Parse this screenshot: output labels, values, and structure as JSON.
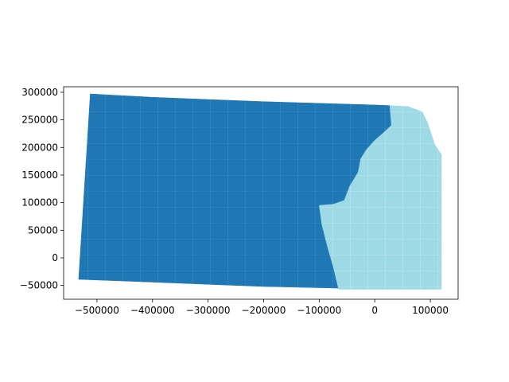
{
  "chart_data": {
    "type": "map",
    "title": "",
    "xlabel": "",
    "ylabel": "",
    "xlim": [
      -560000,
      150000
    ],
    "ylim": [
      -75000,
      310000
    ],
    "x_ticks": [
      -500000,
      -400000,
      -300000,
      -200000,
      -100000,
      0,
      100000
    ],
    "x_tick_labels": [
      "−500000",
      "−400000",
      "−300000",
      "−200000",
      "−100000",
      "0",
      "100000"
    ],
    "y_ticks": [
      -50000,
      0,
      50000,
      100000,
      150000,
      200000,
      250000,
      300000
    ],
    "y_tick_labels": [
      "−50000",
      "0",
      "50000",
      "100000",
      "150000",
      "200000",
      "250000",
      "300000"
    ],
    "grid": false,
    "regions": [
      {
        "color": "#1f77b4",
        "polygon": [
          [
            -512000,
            297000
          ],
          [
            -400000,
            291000
          ],
          [
            -300000,
            287000
          ],
          [
            -200000,
            283000
          ],
          [
            -100000,
            280000
          ],
          [
            0,
            277000
          ],
          [
            27000,
            276000
          ],
          [
            30000,
            240000
          ],
          [
            15000,
            226000
          ],
          [
            0,
            213000
          ],
          [
            -15000,
            196000
          ],
          [
            -25000,
            180000
          ],
          [
            -30000,
            155000
          ],
          [
            -45000,
            130000
          ],
          [
            -55000,
            104000
          ],
          [
            -75000,
            97000
          ],
          [
            -100000,
            95000
          ],
          [
            -95000,
            60000
          ],
          [
            -85000,
            20000
          ],
          [
            -75000,
            -15000
          ],
          [
            -65000,
            -55000
          ],
          [
            -200000,
            -52000
          ],
          [
            -300000,
            -48000
          ],
          [
            -400000,
            -44000
          ],
          [
            -533000,
            -39000
          ]
        ]
      },
      {
        "color": "#9edae5",
        "polygon": [
          [
            27000,
            276000
          ],
          [
            60000,
            274000
          ],
          [
            85000,
            265000
          ],
          [
            95000,
            245000
          ],
          [
            108000,
            205000
          ],
          [
            120000,
            187000
          ],
          [
            120000,
            -57000
          ],
          [
            -65000,
            -57000
          ],
          [
            -75000,
            -15000
          ],
          [
            -85000,
            20000
          ],
          [
            -95000,
            60000
          ],
          [
            -100000,
            95000
          ],
          [
            -75000,
            97000
          ],
          [
            -55000,
            104000
          ],
          [
            -45000,
            130000
          ],
          [
            -30000,
            155000
          ],
          [
            -25000,
            180000
          ],
          [
            -15000,
            196000
          ],
          [
            0,
            213000
          ],
          [
            15000,
            226000
          ],
          [
            30000,
            240000
          ]
        ]
      }
    ]
  }
}
